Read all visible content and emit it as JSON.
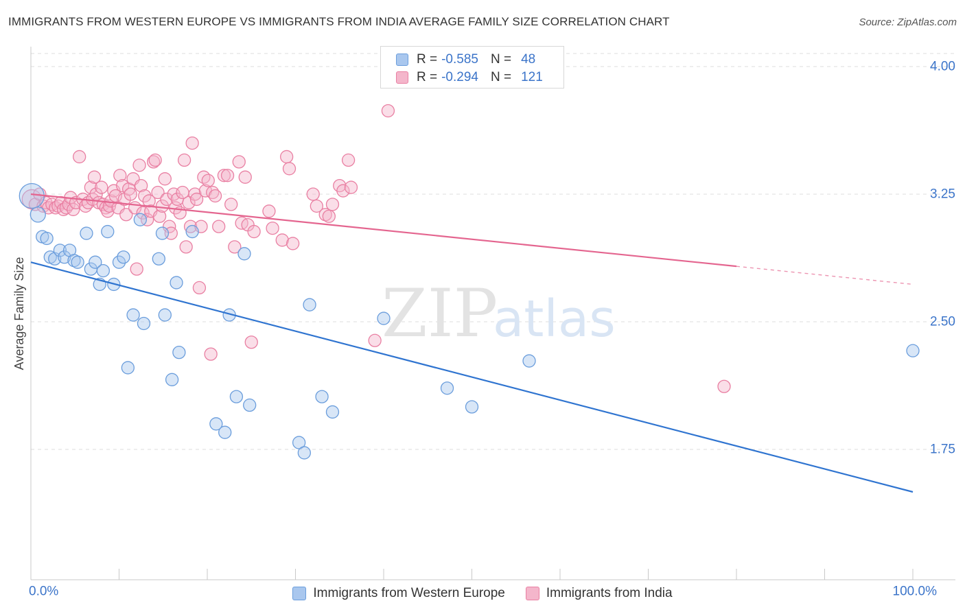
{
  "title": "IMMIGRANTS FROM WESTERN EUROPE VS IMMIGRANTS FROM INDIA AVERAGE FAMILY SIZE CORRELATION CHART",
  "source": "Source: ZipAtlas.com",
  "watermark": {
    "zip": "ZIP",
    "atlas": "atlas"
  },
  "colors": {
    "blue_fill": "#a9c7ee",
    "blue_stroke": "#6a9ddc",
    "blue_line": "#2f74d0",
    "pink_fill": "#f4b6cb",
    "pink_stroke": "#e97fa2",
    "pink_line": "#e4658f",
    "tick_label": "#3b74c9",
    "grid": "#dddddd"
  },
  "stats_legend": {
    "rows": [
      {
        "r_label": "R =",
        "r_value": "-0.585",
        "n_label": "N =",
        "n_value": "48",
        "series": "blue"
      },
      {
        "r_label": "R =",
        "r_value": "-0.294",
        "n_label": "N =",
        "n_value": "121",
        "series": "pink"
      }
    ]
  },
  "chart_data": {
    "type": "scatter",
    "title": "IMMIGRANTS FROM WESTERN EUROPE VS IMMIGRANTS FROM INDIA AVERAGE FAMILY SIZE CORRELATION CHART",
    "xlabel": "",
    "ylabel": "Average Family Size",
    "xlim": [
      0,
      100
    ],
    "ylim": [
      1.0,
      4.12
    ],
    "x_ticks": [
      0,
      100
    ],
    "x_tick_labels": [
      "0.0%",
      "100.0%"
    ],
    "y_ticks": [
      1.75,
      2.5,
      3.25,
      4.0
    ],
    "y_tick_labels": [
      "1.75",
      "2.50",
      "3.25",
      "4.00"
    ],
    "grid": true,
    "legend_position": "bottom",
    "series": [
      {
        "name": "Immigrants from Western Europe",
        "color": "blue",
        "trend": {
          "x0": 0,
          "y0": 2.85,
          "x1": 100,
          "y1": 1.5,
          "dash_from": null
        },
        "points": [
          [
            0.1,
            3.24,
            18
          ],
          [
            0.8,
            3.13,
            11
          ],
          [
            1.3,
            3.0,
            9
          ],
          [
            1.8,
            2.99,
            9
          ],
          [
            2.2,
            2.88,
            9
          ],
          [
            2.7,
            2.87,
            9
          ],
          [
            3.3,
            2.92,
            9
          ],
          [
            3.8,
            2.88,
            9
          ],
          [
            4.4,
            2.92,
            9
          ],
          [
            4.9,
            2.86,
            9
          ],
          [
            5.3,
            2.85,
            9
          ],
          [
            6.3,
            3.02,
            9
          ],
          [
            6.8,
            2.81,
            9
          ],
          [
            7.3,
            2.85,
            9
          ],
          [
            7.8,
            2.72,
            9
          ],
          [
            8.2,
            2.8,
            9
          ],
          [
            8.7,
            3.03,
            9
          ],
          [
            9.4,
            2.72,
            9
          ],
          [
            10.0,
            2.85,
            9
          ],
          [
            10.5,
            2.88,
            9
          ],
          [
            11.0,
            2.23,
            9
          ],
          [
            11.6,
            2.54,
            9
          ],
          [
            12.4,
            3.1,
            9
          ],
          [
            12.8,
            2.49,
            9
          ],
          [
            14.5,
            2.87,
            9
          ],
          [
            14.9,
            3.02,
            9
          ],
          [
            15.2,
            2.54,
            9
          ],
          [
            16.0,
            2.16,
            9
          ],
          [
            16.5,
            2.73,
            9
          ],
          [
            16.8,
            2.32,
            9
          ],
          [
            18.3,
            3.03,
            9
          ],
          [
            21.0,
            1.9,
            9
          ],
          [
            22.0,
            1.85,
            9
          ],
          [
            22.5,
            2.54,
            9
          ],
          [
            23.3,
            2.06,
            9
          ],
          [
            24.2,
            2.9,
            9
          ],
          [
            24.8,
            2.01,
            9
          ],
          [
            30.4,
            1.79,
            9
          ],
          [
            31.0,
            1.73,
            9
          ],
          [
            31.6,
            2.6,
            9
          ],
          [
            33.0,
            2.06,
            9
          ],
          [
            34.2,
            1.97,
            9
          ],
          [
            40.0,
            2.52,
            9
          ],
          [
            47.2,
            2.11,
            9
          ],
          [
            50.0,
            2.0,
            9
          ],
          [
            56.5,
            2.27,
            9
          ],
          [
            100.0,
            2.33,
            9
          ]
        ]
      },
      {
        "name": "Immigrants from India",
        "color": "pink",
        "trend": {
          "x0": 0,
          "y0": 3.25,
          "x1": 100,
          "y1": 2.72,
          "dash_from": 80
        },
        "points": [
          [
            0.1,
            3.22,
            14
          ],
          [
            0.5,
            3.19,
            9
          ],
          [
            1.0,
            3.25,
            9
          ],
          [
            1.4,
            3.18,
            9
          ],
          [
            1.7,
            3.2,
            9
          ],
          [
            2.0,
            3.17,
            9
          ],
          [
            2.4,
            3.19,
            9
          ],
          [
            2.8,
            3.17,
            9
          ],
          [
            3.1,
            3.18,
            9
          ],
          [
            3.4,
            3.2,
            9
          ],
          [
            3.7,
            3.16,
            9
          ],
          [
            4.0,
            3.17,
            9
          ],
          [
            4.3,
            3.19,
            9
          ],
          [
            4.5,
            3.23,
            9
          ],
          [
            4.8,
            3.16,
            9
          ],
          [
            5.1,
            3.2,
            9
          ],
          [
            5.5,
            3.47,
            9
          ],
          [
            5.9,
            3.22,
            9
          ],
          [
            6.2,
            3.18,
            9
          ],
          [
            6.5,
            3.2,
            9
          ],
          [
            6.8,
            3.29,
            9
          ],
          [
            7.0,
            3.22,
            9
          ],
          [
            7.2,
            3.35,
            9
          ],
          [
            7.4,
            3.25,
            9
          ],
          [
            7.7,
            3.2,
            9
          ],
          [
            8.0,
            3.29,
            9
          ],
          [
            8.2,
            3.19,
            9
          ],
          [
            8.5,
            3.17,
            9
          ],
          [
            8.7,
            3.15,
            9
          ],
          [
            8.9,
            3.18,
            9
          ],
          [
            9.1,
            3.21,
            9
          ],
          [
            9.4,
            3.27,
            9
          ],
          [
            9.6,
            3.24,
            9
          ],
          [
            9.9,
            3.17,
            9
          ],
          [
            10.1,
            3.36,
            9
          ],
          [
            10.4,
            3.3,
            9
          ],
          [
            10.6,
            3.22,
            9
          ],
          [
            10.8,
            3.13,
            9
          ],
          [
            11.1,
            3.28,
            9
          ],
          [
            11.3,
            3.25,
            9
          ],
          [
            11.6,
            3.34,
            9
          ],
          [
            11.8,
            3.17,
            9
          ],
          [
            12.0,
            2.81,
            9
          ],
          [
            12.3,
            3.42,
            9
          ],
          [
            12.5,
            3.3,
            9
          ],
          [
            12.7,
            3.14,
            9
          ],
          [
            12.9,
            3.24,
            9
          ],
          [
            13.2,
            3.1,
            9
          ],
          [
            13.4,
            3.21,
            9
          ],
          [
            13.6,
            3.15,
            9
          ],
          [
            13.9,
            3.44,
            9
          ],
          [
            14.1,
            3.45,
            9
          ],
          [
            14.4,
            3.26,
            9
          ],
          [
            14.6,
            3.12,
            9
          ],
          [
            14.9,
            3.18,
            9
          ],
          [
            15.2,
            3.34,
            9
          ],
          [
            15.4,
            3.22,
            9
          ],
          [
            15.7,
            3.06,
            9
          ],
          [
            15.9,
            3.02,
            9
          ],
          [
            16.2,
            3.25,
            9
          ],
          [
            16.4,
            3.17,
            9
          ],
          [
            16.6,
            3.22,
            9
          ],
          [
            16.9,
            3.14,
            9
          ],
          [
            17.2,
            3.26,
            9
          ],
          [
            17.4,
            3.45,
            9
          ],
          [
            17.6,
            2.94,
            9
          ],
          [
            17.9,
            3.2,
            9
          ],
          [
            18.1,
            3.06,
            9
          ],
          [
            18.3,
            3.55,
            9
          ],
          [
            18.6,
            3.25,
            9
          ],
          [
            18.8,
            3.22,
            9
          ],
          [
            19.1,
            2.7,
            9
          ],
          [
            19.3,
            3.06,
            9
          ],
          [
            19.6,
            3.35,
            9
          ],
          [
            19.8,
            3.27,
            9
          ],
          [
            20.1,
            3.33,
            9
          ],
          [
            20.4,
            2.31,
            9
          ],
          [
            20.6,
            3.26,
            9
          ],
          [
            20.9,
            3.24,
            9
          ],
          [
            21.3,
            3.06,
            9
          ],
          [
            21.9,
            3.36,
            9
          ],
          [
            22.3,
            3.36,
            9
          ],
          [
            22.7,
            3.19,
            9
          ],
          [
            23.1,
            2.94,
            9
          ],
          [
            23.6,
            3.44,
            9
          ],
          [
            23.9,
            3.08,
            9
          ],
          [
            24.3,
            3.35,
            9
          ],
          [
            24.6,
            3.07,
            9
          ],
          [
            25.0,
            2.38,
            9
          ],
          [
            25.3,
            3.03,
            9
          ],
          [
            27.0,
            3.15,
            9
          ],
          [
            27.4,
            3.05,
            9
          ],
          [
            28.5,
            2.98,
            9
          ],
          [
            29.0,
            3.47,
            9
          ],
          [
            29.3,
            3.4,
            9
          ],
          [
            29.7,
            2.96,
            9
          ],
          [
            32.0,
            3.25,
            9
          ],
          [
            32.4,
            3.18,
            9
          ],
          [
            33.4,
            3.13,
            9
          ],
          [
            33.8,
            3.12,
            9
          ],
          [
            34.2,
            3.19,
            9
          ],
          [
            35.0,
            3.3,
            9
          ],
          [
            35.4,
            3.27,
            9
          ],
          [
            36.0,
            3.45,
            9
          ],
          [
            36.3,
            3.29,
            9
          ],
          [
            39.0,
            2.39,
            9
          ],
          [
            40.5,
            3.74,
            9
          ],
          [
            78.6,
            2.12,
            9
          ]
        ]
      }
    ]
  },
  "axis": {
    "ylabel": "Average Family Size",
    "y_tick_labels": [
      "4.00",
      "3.25",
      "2.50",
      "1.75"
    ],
    "x_tick_labels": [
      "0.0%",
      "100.0%"
    ]
  },
  "legend": {
    "items": [
      {
        "label": "Immigrants from Western Europe",
        "color": "blue"
      },
      {
        "label": "Immigrants from India",
        "color": "pink"
      }
    ]
  }
}
